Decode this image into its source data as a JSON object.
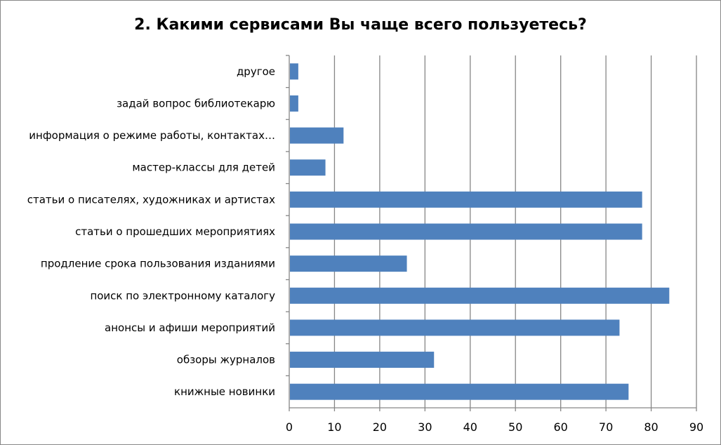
{
  "chart_data": {
    "type": "bar",
    "orientation": "horizontal",
    "title": "2. Какими сервисами Вы чаще всего пользуетесь?",
    "categories": [
      "книжные новинки",
      "обзоры журналов",
      "анонсы и афиши мероприятий",
      "поиск по электронному каталогу",
      "продление срока пользования изданиями",
      "статьи о прошедших мероприятиях",
      "статьи о писателях, художниках и артистах",
      "мастер-классы для детей",
      "информация о режиме работы, контактах…",
      "задай вопрос библиотекарю",
      "другое"
    ],
    "values": [
      75,
      32,
      73,
      84,
      26,
      78,
      78,
      8,
      12,
      2,
      2
    ],
    "xlim": [
      0,
      90
    ],
    "xticks": [
      "0",
      "10",
      "20",
      "30",
      "40",
      "50",
      "60",
      "70",
      "80",
      "90"
    ],
    "grid": true,
    "legend": "none",
    "bar_color": "#4F81BD",
    "xlabel": "",
    "ylabel": ""
  }
}
